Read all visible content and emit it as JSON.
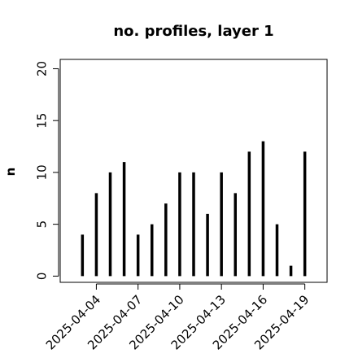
{
  "chart_data": {
    "type": "bar",
    "title": "no. profiles, layer 1",
    "ylabel": "n",
    "x": [
      "2025-04-03",
      "2025-04-04",
      "2025-04-05",
      "2025-04-06",
      "2025-04-07",
      "2025-04-08",
      "2025-04-09",
      "2025-04-10",
      "2025-04-11",
      "2025-04-12",
      "2025-04-13",
      "2025-04-14",
      "2025-04-15",
      "2025-04-16",
      "2025-04-17",
      "2025-04-18",
      "2025-04-19"
    ],
    "values": [
      4,
      8,
      10,
      11,
      4,
      5,
      7,
      10,
      10,
      6,
      10,
      8,
      12,
      13,
      5,
      1,
      12
    ],
    "color": "#000000",
    "ylim": [
      0,
      20
    ],
    "yticks": [
      0,
      5,
      10,
      15,
      20
    ],
    "xticks": [
      "2025-04-04",
      "2025-04-07",
      "2025-04-10",
      "2025-04-13",
      "2025-04-16",
      "2025-04-19"
    ],
    "xtick_colors": [
      "#000000",
      "#000000",
      "#228B22",
      "#000000",
      "#000000",
      "#000000"
    ]
  }
}
